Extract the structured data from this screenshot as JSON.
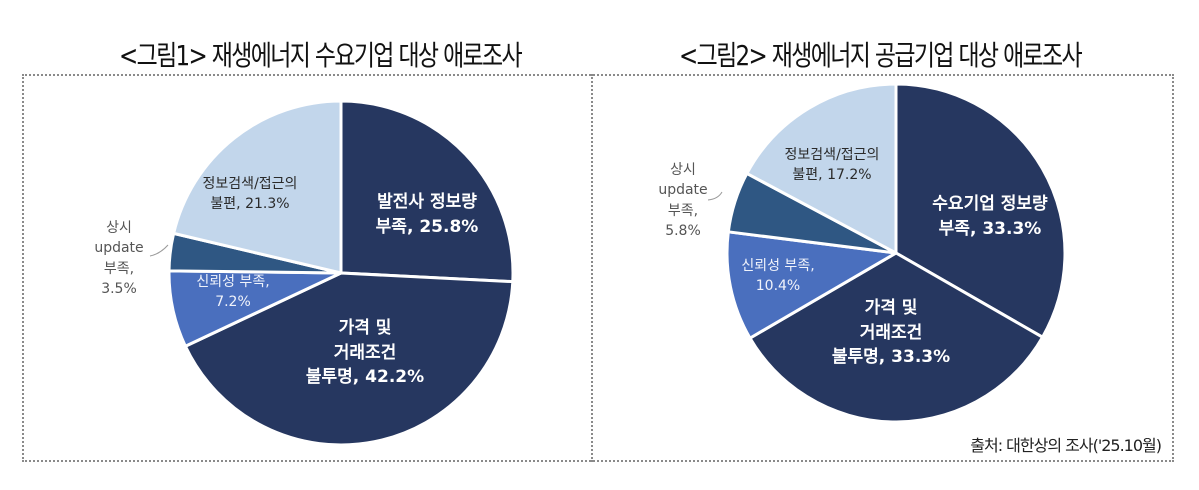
{
  "figure1": {
    "title": "<그림1> 재생에너지 수요기업 대상 애로조사",
    "labels": {
      "s0": [
        "발전사 정보량",
        "부족, 25.8%"
      ],
      "s1": [
        "가격 및",
        "거래조건",
        "불투명, 42.2%"
      ],
      "s2": [
        "신뢰성 부족,",
        "7.2%"
      ],
      "s3": [
        "상시",
        "update",
        "부족,",
        "3.5%"
      ],
      "s4": [
        "정보검색/접근의",
        "불편, 21.3%"
      ]
    }
  },
  "figure2": {
    "title": "<그림2> 재생에너지 공급기업 대상 애로조사",
    "labels": {
      "s0": [
        "수요기업 정보량",
        "부족, 33.3%"
      ],
      "s1": [
        "가격 및",
        "거래조건",
        "불투명, 33.3%"
      ],
      "s2": [
        "신뢰성 부족,",
        "10.4%"
      ],
      "s3": [
        "상시",
        "update",
        "부족,",
        "5.8%"
      ],
      "s4": [
        "정보검색/접근의",
        "불편, 17.2%"
      ]
    }
  },
  "source": "출처: 대한상의 조사('25.10월)",
  "colors": {
    "dark_navy": "#263760",
    "medium_blue": "#4a6fbe",
    "steel_blue": "#2f5783",
    "light_blue": "#c2d6eb"
  },
  "chart_data": [
    {
      "type": "pie",
      "title": "<그림1> 재생에너지 수요기업 대상 애로조사",
      "categories": [
        "발전사 정보량 부족",
        "가격 및 거래조건 불투명",
        "신뢰성 부족",
        "상시 update 부족",
        "정보검색/접근의 불편"
      ],
      "values": [
        25.8,
        42.2,
        7.2,
        3.5,
        21.3
      ],
      "unit": "%",
      "colors": [
        "#263760",
        "#263760",
        "#4a6fbe",
        "#2f5783",
        "#c2d6eb"
      ],
      "start_angle": "12 o'clock, clockwise"
    },
    {
      "type": "pie",
      "title": "<그림2> 재생에너지 공급기업 대상 애로조사",
      "categories": [
        "수요기업 정보량 부족",
        "가격 및 거래조건 불투명",
        "신뢰성 부족",
        "상시 update 부족",
        "정보검색/접근의 불편"
      ],
      "values": [
        33.3,
        33.3,
        10.4,
        5.8,
        17.2
      ],
      "unit": "%",
      "colors": [
        "#263760",
        "#263760",
        "#4a6fbe",
        "#2f5783",
        "#c2d6eb"
      ],
      "start_angle": "12 o'clock, clockwise",
      "source": "출처: 대한상의 조사('25.10월)"
    }
  ]
}
